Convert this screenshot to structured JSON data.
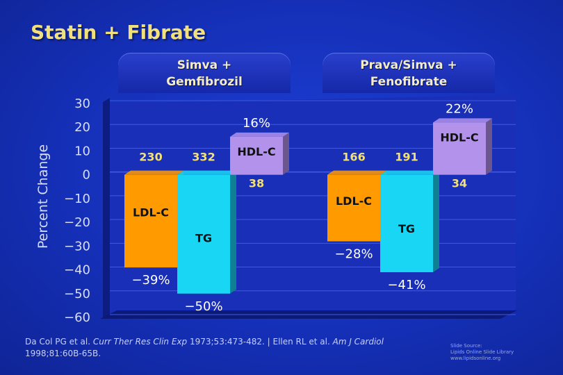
{
  "title": "Statin + Fibrate",
  "groups": [
    {
      "label_line1": "Simva +",
      "label_line2": "Gemfibrozil"
    },
    {
      "label_line1": "Prava/Simva +",
      "label_line2": "Fenofibrate"
    }
  ],
  "chart_data": {
    "type": "bar",
    "ylabel": "Percent Change",
    "ylim": [
      -60,
      30
    ],
    "yticks": [
      30,
      20,
      10,
      0,
      -10,
      -20,
      -30,
      -40,
      -50,
      -60
    ],
    "categories": [
      "Simva + Gemfibrozil",
      "Prava/Simva + Fenofibrate"
    ],
    "bars": [
      {
        "group": 0,
        "name": "LDL-C",
        "value": -39,
        "value_label": "-39%",
        "n_label": "230",
        "color": "#ff9a00"
      },
      {
        "group": 0,
        "name": "TG",
        "value": -50,
        "value_label": "-50%",
        "n_label": "332",
        "color": "#19d6f5"
      },
      {
        "group": 0,
        "name": "HDL-C",
        "value": 16,
        "value_label": "16%",
        "n_label": "38",
        "color": "#b392ec"
      },
      {
        "group": 1,
        "name": "LDL-C",
        "value": -28,
        "value_label": "-28%",
        "n_label": "166",
        "color": "#ff9a00"
      },
      {
        "group": 1,
        "name": "TG",
        "value": -41,
        "value_label": "-41%",
        "n_label": "191",
        "color": "#19d6f5"
      },
      {
        "group": 1,
        "name": "HDL-C",
        "value": 22,
        "value_label": "22%",
        "n_label": "34",
        "color": "#b392ec"
      }
    ],
    "grid": true
  },
  "footer": {
    "part1": "Da Col PG et al. ",
    "journal1": "Curr Ther Res Clin Exp",
    "part2": " 1973;53:473-482. | Ellen RL et al. ",
    "journal2": "Am J Cardiol",
    "part3": " 1998;81:60B-65B."
  },
  "source": {
    "line1": "Slide Source:",
    "line2": "Lipids Online Slide Library",
    "line3": "www.lipidsonline.org"
  }
}
